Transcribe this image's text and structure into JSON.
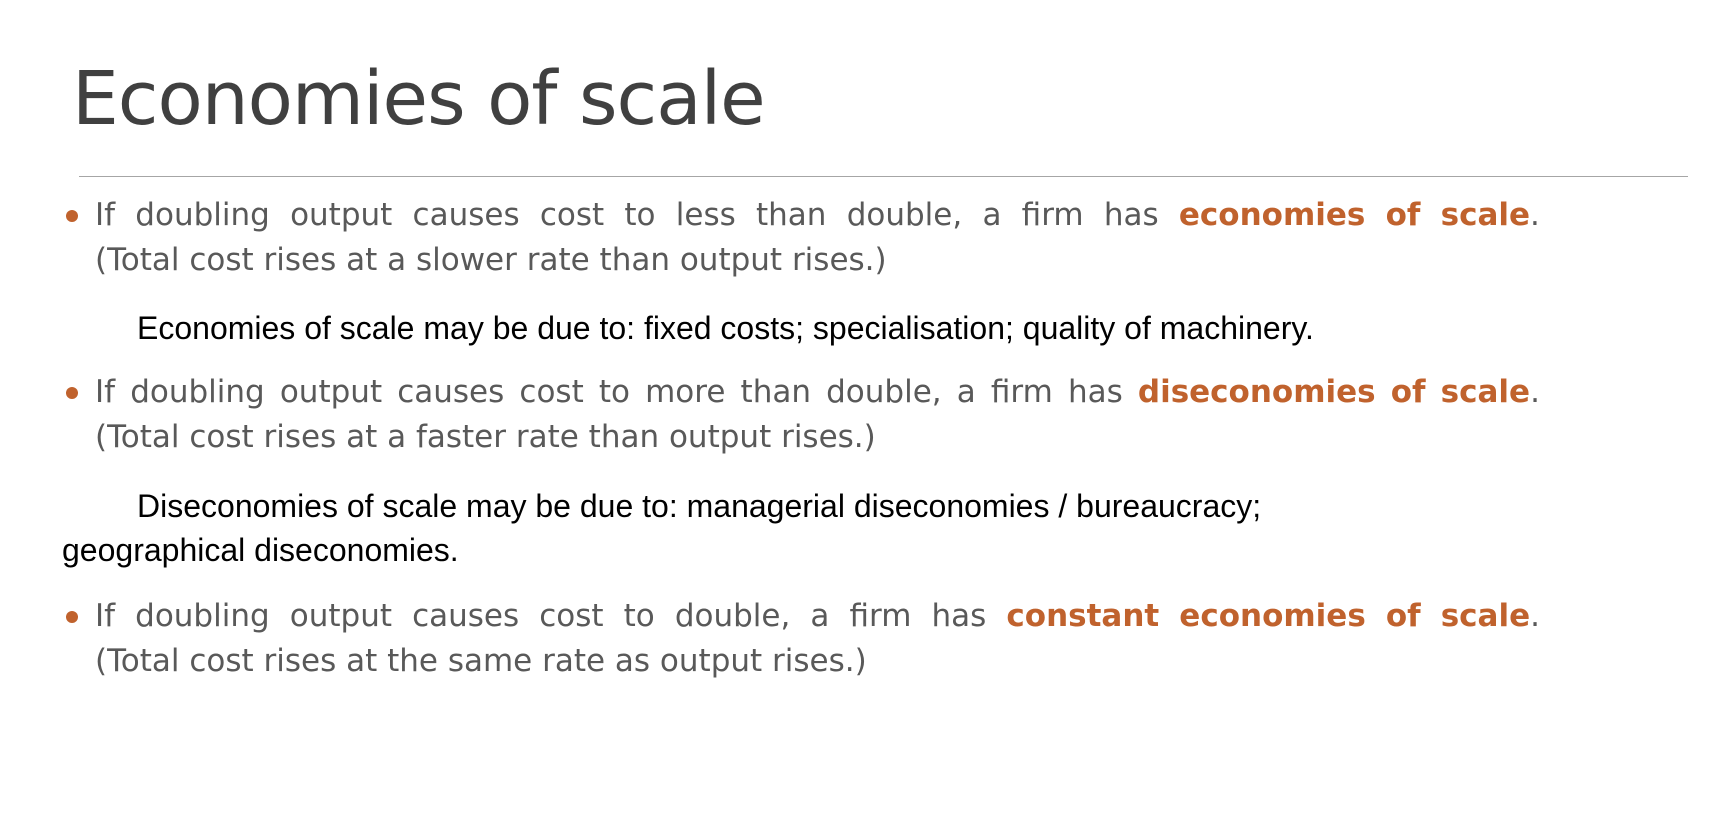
{
  "slide": {
    "title": "Economies of scale",
    "bullets": [
      {
        "line1_words": [
          "If",
          "doubling",
          "output",
          "causes",
          "cost",
          "to",
          "less",
          "than",
          "double,",
          "a",
          "firm",
          "has"
        ],
        "highlight": "economies of scale",
        "highlight_suffix": ".",
        "line2": "(Total cost rises at a slower rate than output rises.)"
      },
      {
        "line1_words": [
          "If",
          "doubling",
          "output",
          "causes",
          "cost",
          "to",
          "more",
          "than",
          "double,",
          "a",
          "firm",
          "has"
        ],
        "highlight": "diseconomies of scale",
        "highlight_suffix": ".",
        "line2": "(Total cost rises at a faster rate than output rises.)"
      },
      {
        "line1_words": [
          "If",
          "doubling",
          "output",
          "causes",
          "cost",
          "to",
          "double,",
          "a",
          "firm",
          "has"
        ],
        "highlight": "constant economies of scale",
        "highlight_suffix": ".",
        "line2": "(Total cost rises at the same rate as output rises.)"
      }
    ],
    "notes": {
      "economies": "Economies of scale may be due to: fixed costs; specialisation; quality of machinery.",
      "diseconomies_line1": "Diseconomies of scale may be due to: managerial diseconomies / bureaucracy;",
      "diseconomies_line2": "geographical diseconomies."
    }
  },
  "colors": {
    "title": "#404040",
    "body_text": "#595959",
    "accent": "#c0622d",
    "rule": "#a6a6a6",
    "note_text": "#000000"
  }
}
